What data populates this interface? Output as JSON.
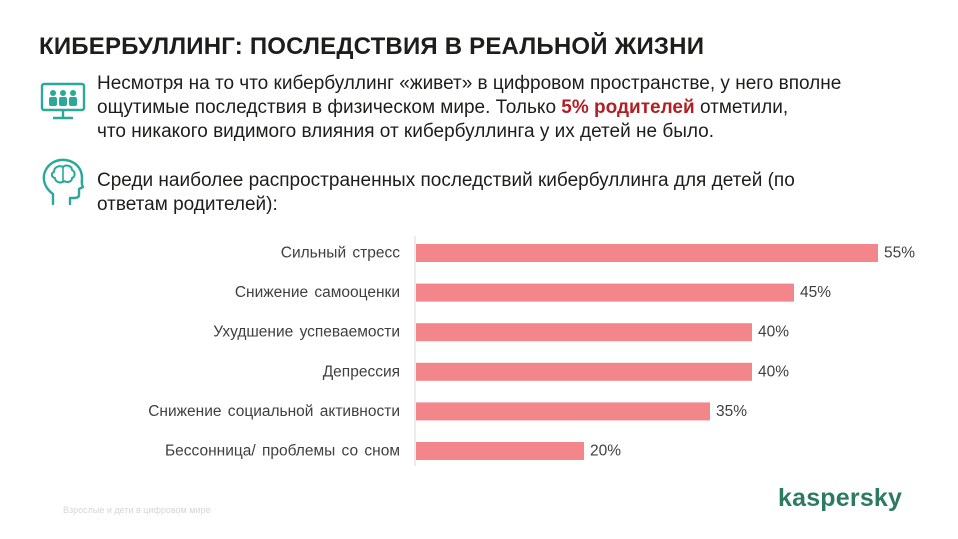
{
  "title": "КИБЕРБУЛЛИНГ: ПОСЛЕДСТВИЯ В РЕАЛЬНОЙ ЖИЗНИ",
  "intro": {
    "line1": "Несмотря на то что кибербуллинг «живет» в цифровом пространстве, у него вполне",
    "line2_before": "ощутимые последствия в физическом мире. Только ",
    "line2_highlight": "5% родителей",
    "line2_after": " отметили,",
    "line3": "что никакого видимого влияния от кибербуллинга у их детей не было."
  },
  "lead": {
    "line1": "Среди наиболее распространенных последствий кибербуллинга для детей (по",
    "line2": "ответам родителей):"
  },
  "icons": [
    "presentation-group-icon",
    "head-brain-icon"
  ],
  "colors": {
    "bar": "#f2868b",
    "highlight": "#b01f24",
    "brand": "#2c7a61",
    "icon": "#2aa89a"
  },
  "chart_data": {
    "type": "bar",
    "orientation": "horizontal",
    "categories": [
      "Сильный стресс",
      "Снижение самооценки",
      "Ухудшение успеваемости",
      "Депрессия",
      "Снижение социальной активности",
      "Бессонница/ проблемы со сном"
    ],
    "values": [
      55,
      45,
      40,
      40,
      35,
      20
    ],
    "value_labels": [
      "55%",
      "45%",
      "40%",
      "40%",
      "35%",
      "20%"
    ],
    "xlim": [
      0,
      55
    ],
    "grid": false
  },
  "footer": "Взрослые и дети в цифровом мире",
  "logo": "kaspersky"
}
